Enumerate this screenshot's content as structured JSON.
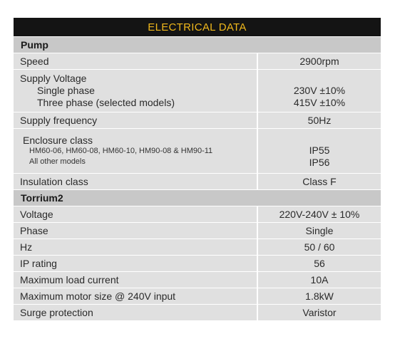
{
  "title": "ELECTRICAL DATA",
  "pump": {
    "heading": "Pump",
    "speed": {
      "label": "Speed",
      "value": "2900rpm"
    },
    "supply_voltage": {
      "label": "Supply Voltage",
      "single_label": "Single phase",
      "single_value": "230V ±10%",
      "three_label": "Three phase (selected models)",
      "three_value": "415V ±10%"
    },
    "supply_frequency": {
      "label": "Supply frequency",
      "value": "50Hz"
    },
    "enclosure": {
      "label": "Enclosure class",
      "line1_label": "HM60-06, HM60-08, HM60-10, HM90-08 & HM90-11",
      "line1_value": "IP55",
      "line2_label": "All other models",
      "line2_value": "IP56"
    },
    "insulation": {
      "label": "Insulation class",
      "value": "Class F"
    }
  },
  "torrium": {
    "heading": "Torrium2",
    "rows": [
      {
        "label": "Voltage",
        "value": "220V-240V ± 10%"
      },
      {
        "label": "Phase",
        "value": "Single"
      },
      {
        "label": "Hz",
        "value": "50 / 60"
      },
      {
        "label": "IP rating",
        "value": "56"
      },
      {
        "label": "Maximum load current",
        "value": "10A"
      },
      {
        "label": "Maximum motor size @ 240V input",
        "value": "1.8kW"
      },
      {
        "label": "Surge protection",
        "value": "Varistor"
      }
    ]
  },
  "colors": {
    "header_bg": "#141414",
    "header_text": "#f0b81c",
    "section_bg": "#c8c8c8",
    "cell_bg": "#e0e0e0"
  }
}
